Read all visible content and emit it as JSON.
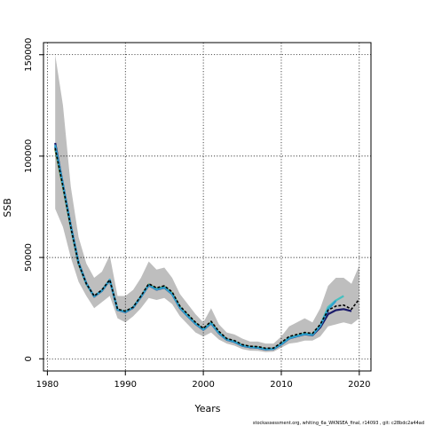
{
  "chart_data": {
    "type": "line",
    "title": "",
    "xlabel": "Years",
    "ylabel": "SSB",
    "xlim": [
      1979.5,
      2021.5
    ],
    "ylim": [
      -6000,
      156000
    ],
    "xticks": [
      1980,
      1990,
      2000,
      2010,
      2020
    ],
    "yticks": [
      0,
      50000,
      100000,
      150000
    ],
    "ytick_labels": [
      "0",
      "50000",
      "100000",
      "150000"
    ],
    "grid": true,
    "footer": "stockassessment.org, whiting_6a_WKNSEA_final, r14093 , git: c28bdc2a44ad",
    "colors": {
      "band": "#bebebe",
      "final": "#000000",
      "retro": [
        "#2ea1cf",
        "#45c0c0",
        "#1a1a6a",
        "#24247e",
        "#7ab33a"
      ]
    },
    "confidence_band": {
      "x": [
        1981,
        1982,
        1983,
        1984,
        1985,
        1986,
        1987,
        1988,
        1989,
        1990,
        1991,
        1992,
        1993,
        1994,
        1995,
        1996,
        1997,
        1998,
        1999,
        2000,
        2001,
        2002,
        2003,
        2004,
        2005,
        2006,
        2007,
        2008,
        2009,
        2010,
        2011,
        2012,
        2013,
        2014,
        2015,
        2016,
        2017,
        2018,
        2019,
        2020
      ],
      "lower": [
        74000,
        65000,
        50000,
        38000,
        31000,
        25000,
        28000,
        31000,
        20000,
        18000,
        21000,
        25000,
        30000,
        29000,
        30000,
        27000,
        21000,
        17000,
        13000,
        11000,
        13000,
        9500,
        7500,
        6500,
        4800,
        4000,
        3900,
        3300,
        3500,
        5500,
        7500,
        8000,
        9000,
        9000,
        11000,
        16000,
        17000,
        18000,
        17000,
        20000
      ],
      "upper": [
        150000,
        125000,
        85000,
        60000,
        47000,
        40000,
        43000,
        51000,
        31000,
        31000,
        34000,
        40000,
        48000,
        44000,
        45000,
        40000,
        32000,
        27000,
        22000,
        18000,
        25000,
        17000,
        13000,
        12000,
        10000,
        8500,
        8500,
        7500,
        7500,
        11000,
        16000,
        18000,
        20000,
        18000,
        25000,
        36000,
        40000,
        40000,
        37000,
        46000
      ]
    },
    "series": [
      {
        "values_x": [
          1981,
          1982,
          1983,
          1984,
          1985,
          1986,
          1987,
          1988,
          1989,
          1990,
          1991,
          1992,
          1993,
          1994,
          1995,
          1996,
          1997,
          1998,
          1999,
          2000,
          2001,
          2002,
          2003,
          2004,
          2005,
          2006,
          2007,
          2008,
          2009,
          2010,
          2011,
          2012,
          2013,
          2014,
          2015,
          2016,
          2017,
          2018,
          2019,
          2020
        ],
        "values": [
          104000,
          85000,
          65000,
          47000,
          37000,
          31000,
          34000,
          39000,
          24500,
          23500,
          25500,
          31000,
          37000,
          35000,
          36000,
          33000,
          26000,
          22000,
          18000,
          15000,
          18500,
          13500,
          10000,
          9000,
          7000,
          6200,
          6000,
          5200,
          5300,
          8000,
          11000,
          12000,
          13000,
          12500,
          17000,
          24000,
          26000,
          26500,
          24500,
          29500
        ]
      },
      {
        "values_x": [
          1981,
          1982,
          1983,
          1984,
          1985,
          1986,
          1987,
          1988,
          1989,
          1990,
          1991,
          1992,
          1993,
          1994,
          1995,
          1996,
          1997,
          1998,
          1999,
          2000,
          2001,
          2002,
          2003,
          2004,
          2005,
          2006,
          2007,
          2008,
          2009,
          2010,
          2011,
          2012,
          2013,
          2014,
          2015,
          2016,
          2017
        ],
        "values": [
          105500,
          85800,
          65500,
          47300,
          37100,
          30800,
          33600,
          38900,
          24200,
          23100,
          25300,
          30600,
          36400,
          34200,
          35200,
          32000,
          25200,
          21100,
          17300,
          14400,
          17600,
          12700,
          9500,
          8400,
          6500,
          5800,
          5500,
          4700,
          4900,
          7200,
          10100,
          11200,
          12200,
          11800,
          16200,
          24300,
          28600
        ]
      },
      {
        "values_x": [
          1981,
          1982,
          1983,
          1984,
          1985,
          1986,
          1987,
          1988,
          1989,
          1990,
          1991,
          1992,
          1993,
          1994,
          1995,
          1996,
          1997,
          1998,
          1999,
          2000,
          2001,
          2002,
          2003,
          2004,
          2005,
          2006,
          2007,
          2008,
          2009,
          2010,
          2011,
          2012,
          2013,
          2014,
          2015,
          2016,
          2017,
          2018
        ],
        "values": [
          105000,
          85500,
          65300,
          47200,
          37000,
          30900,
          33800,
          39000,
          24300,
          23200,
          25400,
          30700,
          36500,
          34300,
          35300,
          32100,
          25300,
          21200,
          17400,
          14500,
          17700,
          12800,
          9600,
          8500,
          6600,
          5900,
          5600,
          4800,
          5000,
          7400,
          10300,
          11400,
          12400,
          12000,
          16500,
          25500,
          28800,
          31000
        ]
      },
      {
        "values_x": [
          1981,
          1982,
          1983,
          1984,
          1985,
          1986,
          1987,
          1988,
          1989,
          1990,
          1991,
          1992,
          1993,
          1994,
          1995,
          1996,
          1997,
          1998,
          1999,
          2000,
          2001,
          2002,
          2003,
          2004,
          2005,
          2006,
          2007,
          2008,
          2009,
          2010,
          2011,
          2012,
          2013,
          2014,
          2015,
          2016,
          2017,
          2018,
          2019
        ],
        "values": [
          106500,
          86000,
          65800,
          47500,
          37200,
          30700,
          33500,
          38800,
          24100,
          23000,
          25200,
          30500,
          36300,
          34100,
          35100,
          31900,
          25100,
          21000,
          17200,
          14300,
          17500,
          12600,
          9400,
          8300,
          6400,
          5700,
          5400,
          4600,
          4800,
          7100,
          10000,
          11100,
          12100,
          11600,
          15500,
          22000,
          24000,
          24500,
          23500
        ]
      },
      {
        "values_x": [
          1981,
          1982,
          1983,
          1984,
          1985,
          1986,
          1987,
          1988,
          1989,
          1990,
          1991,
          1992,
          1993,
          1994,
          1995,
          1996,
          1997,
          1998,
          1999,
          2000,
          2001,
          2002,
          2003,
          2004,
          2005,
          2006,
          2007,
          2008,
          2009,
          2010,
          2011,
          2012,
          2013,
          2014,
          2015,
          2016
        ],
        "values": [
          104500,
          85600,
          65400,
          47100,
          37050,
          30850,
          33700,
          38950,
          24250,
          23150,
          25350,
          30650,
          36450,
          34250,
          35250,
          32050,
          25250,
          21150,
          17350,
          14450,
          17650,
          12750,
          9550,
          8450,
          6550,
          5850,
          5550,
          4750,
          4950,
          7300,
          10200,
          11300,
          12300,
          11900,
          16300,
          23500
        ]
      },
      {
        "values_x": [
          1981,
          1982,
          1983,
          1984,
          1985,
          1986,
          1987,
          1988,
          1989,
          1990,
          1991,
          1992,
          1993,
          1994,
          1995,
          1996,
          1997,
          1998,
          1999,
          2000,
          2001,
          2002,
          2003,
          2004,
          2005,
          2006,
          2007,
          2008,
          2009,
          2010,
          2011,
          2012,
          2013,
          2014,
          2015
        ],
        "values": [
          103500,
          84800,
          64800,
          46800,
          36900,
          30800,
          33700,
          38900,
          24300,
          23300,
          25400,
          30800,
          36700,
          34600,
          35600,
          32500,
          25600,
          21500,
          17600,
          14700,
          18000,
          13000,
          9700,
          8600,
          6700,
          6000,
          5700,
          4900,
          5000,
          7500,
          10400,
          11500,
          12500,
          12100,
          16400
        ]
      }
    ]
  }
}
